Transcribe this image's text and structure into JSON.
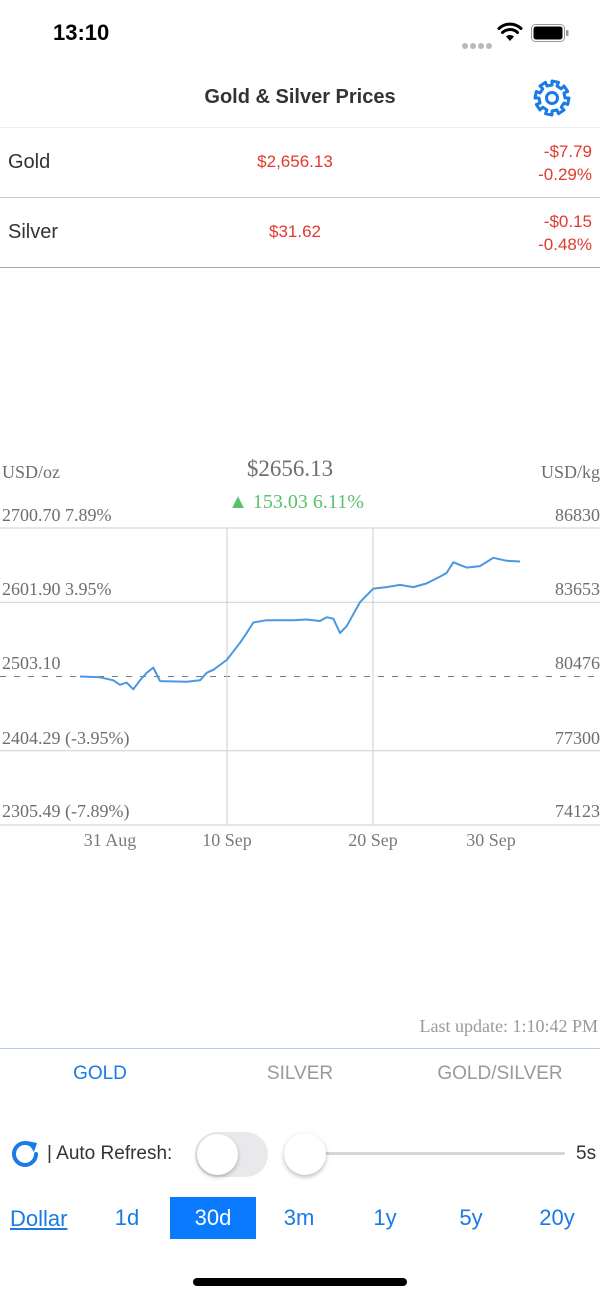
{
  "status_bar": {
    "time": "13:10"
  },
  "nav": {
    "title": "Gold & Silver Prices",
    "settings_icon": "gear-icon"
  },
  "prices": [
    {
      "name": "Gold",
      "price": "$2,656.13",
      "change_abs": "-$7.79",
      "change_pct": "-0.29%"
    },
    {
      "name": "Silver",
      "price": "$31.62",
      "change_abs": "-$0.15",
      "change_pct": "-0.48%"
    }
  ],
  "chart": {
    "unit_left": "USD/oz",
    "unit_right": "USD/kg",
    "current_price": "$2656.13",
    "change_text": "▲ 153.03 6.11%",
    "y_left_labels": [
      "2700.70 7.89%",
      "2601.90 3.95%",
      "2503.10",
      "2404.29 (-3.95%)",
      "2305.49 (-7.89%)"
    ],
    "y_right_labels": [
      "86830",
      "83653",
      "80476",
      "77300",
      "74123"
    ],
    "x_labels": [
      "31 Aug",
      "10 Sep",
      "20 Sep",
      "30 Sep"
    ],
    "last_update": "Last update: 1:10:42 PM",
    "colors": {
      "line": "#4a98e0",
      "up": "#59c26b",
      "down": "#e03a2e"
    }
  },
  "chart_data": {
    "type": "line",
    "series": [
      {
        "values": [
          [
            0,
            2503.1
          ],
          [
            1.5,
            2502.0
          ],
          [
            2.5,
            2498.0
          ],
          [
            3.0,
            2492.0
          ],
          [
            3.5,
            2495.0
          ],
          [
            4.0,
            2486.0
          ],
          [
            4.5,
            2498.0
          ],
          [
            5.0,
            2508.0
          ],
          [
            5.5,
            2515.0
          ],
          [
            6.0,
            2497.0
          ],
          [
            8.0,
            2496.0
          ],
          [
            9.0,
            2498.0
          ],
          [
            9.5,
            2508.0
          ],
          [
            10.0,
            2512.0
          ],
          [
            11.0,
            2525.0
          ],
          [
            12.0,
            2548.0
          ],
          [
            12.5,
            2561.0
          ],
          [
            13.0,
            2575.0
          ],
          [
            14.0,
            2578.0
          ],
          [
            16.0,
            2578.0
          ],
          [
            17.0,
            2579.0
          ],
          [
            17.5,
            2578.0
          ],
          [
            18.0,
            2577.0
          ],
          [
            18.5,
            2582.0
          ],
          [
            19.0,
            2580.0
          ],
          [
            19.5,
            2561.0
          ],
          [
            20.0,
            2570.0
          ],
          [
            20.5,
            2586.0
          ],
          [
            21.0,
            2602.0
          ],
          [
            22.0,
            2620.0
          ],
          [
            23.0,
            2622.0
          ],
          [
            24.0,
            2625.0
          ],
          [
            25.0,
            2622.0
          ],
          [
            26.0,
            2627.0
          ],
          [
            27.0,
            2636.0
          ],
          [
            27.5,
            2641.0
          ],
          [
            28.0,
            2655.0
          ],
          [
            29.0,
            2648.0
          ],
          [
            30.0,
            2650.0
          ],
          [
            31.0,
            2661.0
          ],
          [
            32.0,
            2657.0
          ],
          [
            33.0,
            2656.13
          ]
        ]
      }
    ],
    "ylim": [
      2305.49,
      2700.7
    ],
    "ylim_right": [
      74123,
      86830
    ],
    "x_tick_labels": [
      "31 Aug",
      "10 Sep",
      "20 Sep",
      "30 Sep"
    ],
    "baseline": 2503.1,
    "grid": true
  },
  "tabs": [
    {
      "label": "GOLD",
      "active": true
    },
    {
      "label": "SILVER",
      "active": false
    },
    {
      "label": "GOLD/SILVER",
      "active": false
    }
  ],
  "controls": {
    "auto_refresh_label": "| Auto Refresh:",
    "auto_refresh_on": false,
    "slider_value": "5s",
    "currency": "Dollar",
    "ranges": [
      {
        "label": "1d",
        "active": false
      },
      {
        "label": "30d",
        "active": true
      },
      {
        "label": "3m",
        "active": false
      },
      {
        "label": "1y",
        "active": false
      },
      {
        "label": "5y",
        "active": false
      },
      {
        "label": "20y",
        "active": false
      }
    ]
  }
}
